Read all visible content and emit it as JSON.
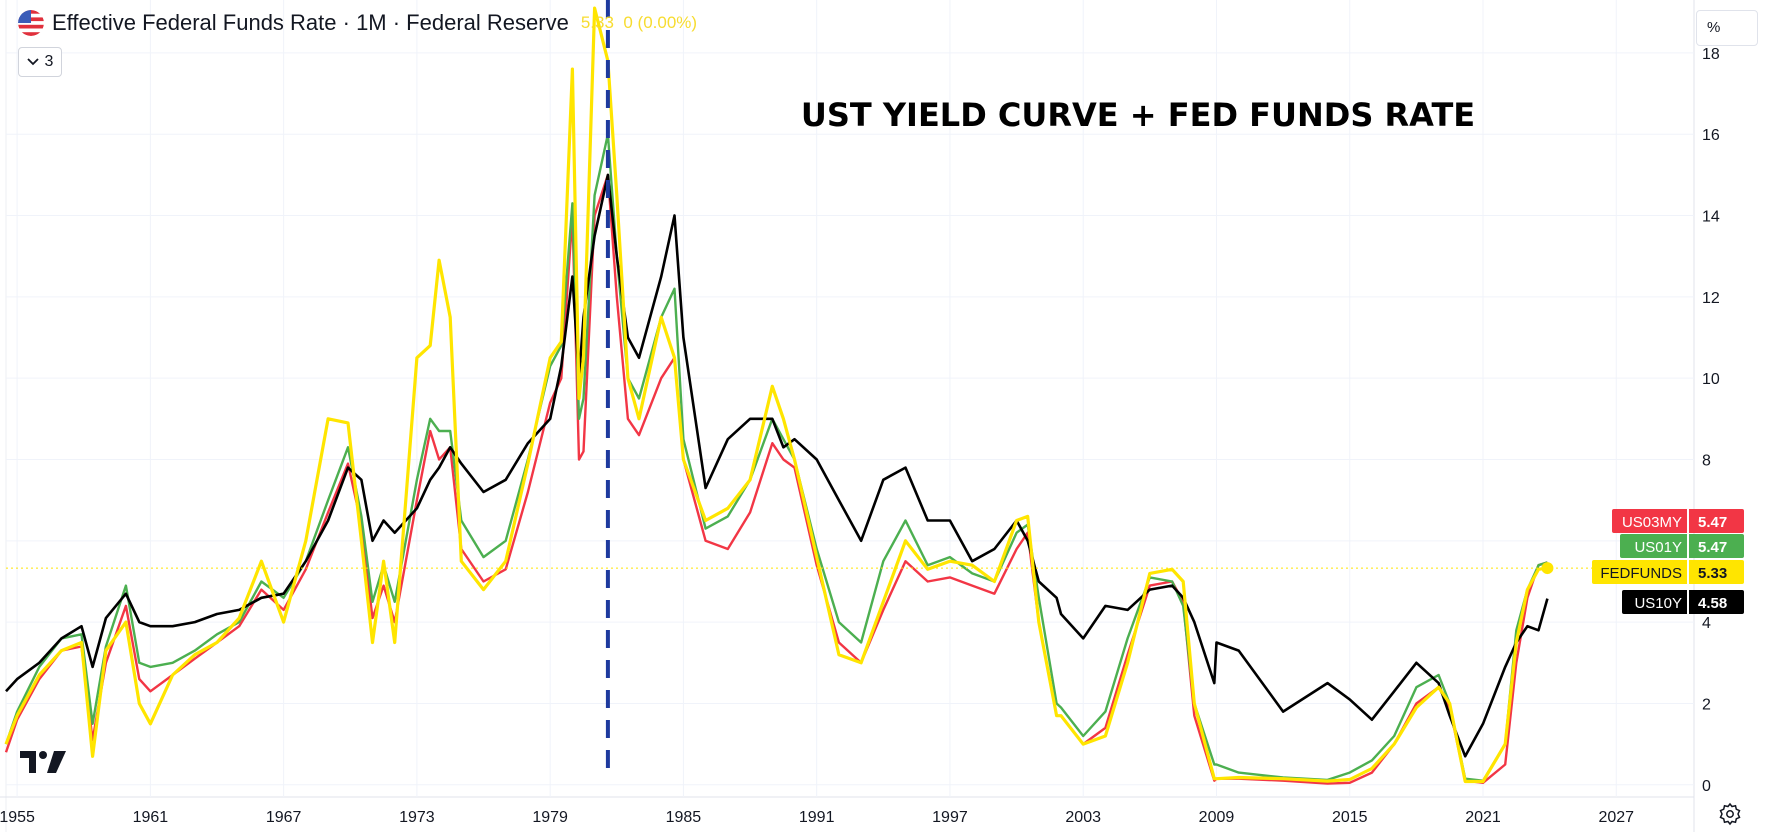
{
  "header": {
    "title": "Effective Federal Funds Rate · 1M · Federal Reserve",
    "last_value": "5.33",
    "change": "0 (0.00%)",
    "indicators_count": "3",
    "unit": "%"
  },
  "icons": {
    "flag": "us-flag-icon",
    "collapse": "chevron-down-icon",
    "settings": "gear-icon",
    "logo": "tradingview-logo-icon"
  },
  "colors": {
    "us03my": "#f23645",
    "us01y": "#4caf50",
    "fedfunds": "#ffe500",
    "us10y": "#000000",
    "marker": "#1e3a9e"
  },
  "chart_data": {
    "type": "line",
    "title": "UST YIELD CURVE + FED FUNDS RATE",
    "xlabel": "",
    "ylabel": "",
    "xlim": [
      1954.5,
      2030.5
    ],
    "ylim": [
      -0.3,
      19.3
    ],
    "x_ticks": [
      "1955",
      "1961",
      "1967",
      "1973",
      "1979",
      "1985",
      "1991",
      "1997",
      "2003",
      "2009",
      "2015",
      "2021",
      "2027"
    ],
    "y_ticks": [
      "0",
      "2",
      "4",
      "6",
      "8",
      "10",
      "12",
      "14",
      "16",
      "18"
    ],
    "vertical_marker_year": 1981.6,
    "series": [
      {
        "name": "US03MY",
        "label": "5.47",
        "x": [
          1954.5,
          1955,
          1956,
          1957,
          1957.9,
          1958.4,
          1959,
          1959.9,
          1960.5,
          1961,
          1962,
          1963,
          1964,
          1965,
          1966,
          1967,
          1968,
          1969,
          1969.9,
          1970.5,
          1971,
          1971.5,
          1972,
          1973,
          1973.6,
          1974,
          1974.5,
          1975,
          1976,
          1977,
          1978,
          1979,
          1979.5,
          1980,
          1980.3,
          1980.5,
          1981,
          1981.6,
          1982,
          1982.5,
          1983,
          1984,
          1984.6,
          1985,
          1986,
          1987,
          1988,
          1989,
          1989.5,
          1990,
          1991,
          1992,
          1993,
          1994,
          1995,
          1996,
          1997,
          1998,
          1999,
          2000,
          2000.5,
          2001,
          2001.8,
          2002,
          2003,
          2004,
          2005,
          2006,
          2007,
          2007.5,
          2008,
          2008.9,
          2009,
          2010,
          2012,
          2014,
          2015,
          2016,
          2017,
          2018,
          2019,
          2019.5,
          2020.2,
          2021,
          2022,
          2022.5,
          2023,
          2023.5,
          2023.9
        ],
        "y": [
          0.8,
          1.6,
          2.6,
          3.3,
          3.4,
          1.1,
          3.0,
          4.4,
          2.6,
          2.3,
          2.7,
          3.1,
          3.5,
          3.9,
          4.8,
          4.3,
          5.3,
          6.7,
          7.9,
          6.4,
          4.1,
          4.9,
          4.0,
          7.0,
          8.7,
          8.0,
          8.3,
          5.8,
          5.0,
          5.3,
          7.2,
          9.4,
          10.0,
          14.0,
          8.0,
          8.2,
          14.0,
          15.0,
          12.0,
          9.0,
          8.6,
          10.0,
          10.5,
          8.0,
          6.0,
          5.8,
          6.7,
          8.4,
          8.0,
          7.8,
          5.4,
          3.5,
          3.0,
          4.3,
          5.5,
          5.0,
          5.1,
          4.9,
          4.7,
          5.8,
          6.2,
          4.0,
          1.7,
          1.7,
          1.0,
          1.4,
          3.2,
          4.9,
          5.0,
          4.5,
          1.7,
          0.1,
          0.15,
          0.15,
          0.1,
          0.03,
          0.05,
          0.3,
          1.0,
          2.0,
          2.4,
          1.9,
          0.1,
          0.05,
          0.5,
          3.0,
          4.6,
          5.4,
          5.47
        ]
      },
      {
        "name": "US01Y",
        "label": "5.47",
        "x": [
          1954.5,
          1955,
          1956,
          1957,
          1957.9,
          1958.4,
          1959,
          1959.9,
          1960.5,
          1961,
          1962,
          1963,
          1964,
          1965,
          1966,
          1967,
          1968,
          1969,
          1969.9,
          1970.5,
          1971,
          1971.5,
          1972,
          1973,
          1973.6,
          1974,
          1974.5,
          1975,
          1976,
          1977,
          1978,
          1979,
          1979.5,
          1980,
          1980.3,
          1980.5,
          1981,
          1981.6,
          1982,
          1982.5,
          1983,
          1984,
          1984.6,
          1985,
          1986,
          1987,
          1988,
          1989,
          1989.5,
          1990,
          1991,
          1992,
          1993,
          1994,
          1995,
          1996,
          1997,
          1998,
          1999,
          2000,
          2000.5,
          2001,
          2001.8,
          2002,
          2003,
          2004,
          2005,
          2006,
          2007,
          2007.5,
          2008,
          2008.9,
          2009,
          2010,
          2012,
          2014,
          2015,
          2016,
          2017,
          2018,
          2019,
          2019.5,
          2020.2,
          2021,
          2022,
          2022.5,
          2023,
          2023.5,
          2023.9
        ],
        "y": [
          1.0,
          1.8,
          2.9,
          3.6,
          3.7,
          1.5,
          3.4,
          4.9,
          3.0,
          2.9,
          3.0,
          3.3,
          3.7,
          4.0,
          5.0,
          4.6,
          5.5,
          7.0,
          8.3,
          6.6,
          4.5,
          5.4,
          4.5,
          7.5,
          9.0,
          8.7,
          8.7,
          6.5,
          5.6,
          6.0,
          8.0,
          10.3,
          10.8,
          14.3,
          9.0,
          9.5,
          14.5,
          16.0,
          13.0,
          10.0,
          9.5,
          11.5,
          12.2,
          8.5,
          6.3,
          6.6,
          7.5,
          9.0,
          8.5,
          8.0,
          5.8,
          4.0,
          3.5,
          5.5,
          6.5,
          5.4,
          5.6,
          5.2,
          5.0,
          6.2,
          6.4,
          4.6,
          2.0,
          1.9,
          1.2,
          1.8,
          3.6,
          5.1,
          5.0,
          4.4,
          2.0,
          0.5,
          0.5,
          0.3,
          0.18,
          0.12,
          0.3,
          0.6,
          1.2,
          2.4,
          2.7,
          2.0,
          0.15,
          0.1,
          1.0,
          3.8,
          4.8,
          5.4,
          5.47
        ]
      },
      {
        "name": "FEDFUNDS",
        "label": "5.33",
        "x": [
          1954.5,
          1955,
          1956,
          1957,
          1957.9,
          1958.4,
          1959,
          1959.9,
          1960.5,
          1961,
          1962,
          1963,
          1964,
          1965,
          1966,
          1967,
          1968,
          1969,
          1969.9,
          1970.5,
          1971,
          1971.5,
          1972,
          1973,
          1973.6,
          1974,
          1974.5,
          1975,
          1976,
          1977,
          1978,
          1979,
          1979.5,
          1980,
          1980.3,
          1980.5,
          1981,
          1981.6,
          1982,
          1982.5,
          1983,
          1984,
          1984.6,
          1985,
          1986,
          1987,
          1988,
          1989,
          1989.5,
          1990,
          1991,
          1992,
          1993,
          1994,
          1995,
          1996,
          1997,
          1998,
          1999,
          2000,
          2000.5,
          2001,
          2001.8,
          2002,
          2003,
          2004,
          2005,
          2006,
          2007,
          2007.5,
          2008,
          2008.9,
          2009,
          2010,
          2012,
          2014,
          2015,
          2016,
          2017,
          2018,
          2019,
          2019.5,
          2020.2,
          2021,
          2022,
          2022.5,
          2023,
          2023.5,
          2023.9
        ],
        "y": [
          1.0,
          1.7,
          2.7,
          3.3,
          3.5,
          0.7,
          3.3,
          4.0,
          2.0,
          1.5,
          2.7,
          3.2,
          3.5,
          4.1,
          5.5,
          4.0,
          6.0,
          9.0,
          8.9,
          6.0,
          3.5,
          5.5,
          3.5,
          10.5,
          10.8,
          12.9,
          11.5,
          5.5,
          4.8,
          5.5,
          7.9,
          10.5,
          10.9,
          17.6,
          9.5,
          10.5,
          19.1,
          17.8,
          14.5,
          10.0,
          9.0,
          11.5,
          10.5,
          8.0,
          6.5,
          6.8,
          7.5,
          9.8,
          9.0,
          8.0,
          5.6,
          3.2,
          3.0,
          4.5,
          6.0,
          5.3,
          5.5,
          5.4,
          5.0,
          6.5,
          6.6,
          4.0,
          1.7,
          1.7,
          1.0,
          1.2,
          3.0,
          5.2,
          5.3,
          5.0,
          2.0,
          0.15,
          0.15,
          0.18,
          0.15,
          0.09,
          0.13,
          0.4,
          1.0,
          1.9,
          2.4,
          2.0,
          0.08,
          0.08,
          1.0,
          3.5,
          4.8,
          5.3,
          5.33
        ]
      },
      {
        "name": "US10Y",
        "label": "4.58",
        "x": [
          1954.5,
          1955,
          1956,
          1957,
          1957.9,
          1958.4,
          1959,
          1959.9,
          1960.5,
          1961,
          1962,
          1963,
          1964,
          1965,
          1966,
          1967,
          1968,
          1969,
          1969.9,
          1970.5,
          1971,
          1971.5,
          1972,
          1973,
          1973.6,
          1974,
          1974.5,
          1975,
          1976,
          1977,
          1978,
          1979,
          1979.5,
          1980,
          1980.3,
          1980.5,
          1981,
          1981.6,
          1982,
          1982.5,
          1983,
          1984,
          1984.6,
          1985,
          1986,
          1987,
          1988,
          1989,
          1989.5,
          1990,
          1991,
          1992,
          1993,
          1994,
          1995,
          1996,
          1997,
          1998,
          1999,
          2000,
          2000.5,
          2001,
          2001.8,
          2002,
          2003,
          2004,
          2005,
          2006,
          2007,
          2007.5,
          2008,
          2008.9,
          2009,
          2010,
          2012,
          2014,
          2015,
          2016,
          2017,
          2018,
          2019,
          2019.5,
          2020.2,
          2021,
          2022,
          2022.5,
          2023,
          2023.5,
          2023.9
        ],
        "y": [
          2.3,
          2.6,
          3.0,
          3.6,
          3.9,
          2.9,
          4.1,
          4.7,
          4.0,
          3.9,
          3.9,
          4.0,
          4.2,
          4.3,
          4.6,
          4.7,
          5.5,
          6.5,
          7.8,
          7.5,
          6.0,
          6.5,
          6.2,
          6.8,
          7.5,
          7.8,
          8.3,
          7.9,
          7.2,
          7.5,
          8.4,
          9.0,
          10.3,
          12.5,
          10.0,
          11.5,
          13.5,
          15.0,
          13.0,
          11.0,
          10.5,
          12.5,
          14.0,
          11.0,
          7.3,
          8.5,
          9.0,
          9.0,
          8.3,
          8.5,
          8.0,
          7.0,
          6.0,
          7.5,
          7.8,
          6.5,
          6.5,
          5.5,
          5.8,
          6.5,
          6.0,
          5.0,
          4.6,
          4.2,
          3.6,
          4.4,
          4.3,
          4.8,
          4.9,
          4.6,
          4.0,
          2.5,
          3.5,
          3.3,
          1.8,
          2.5,
          2.1,
          1.6,
          2.3,
          3.0,
          2.5,
          1.7,
          0.7,
          1.5,
          2.9,
          3.5,
          3.9,
          3.8,
          4.58
        ]
      }
    ]
  }
}
